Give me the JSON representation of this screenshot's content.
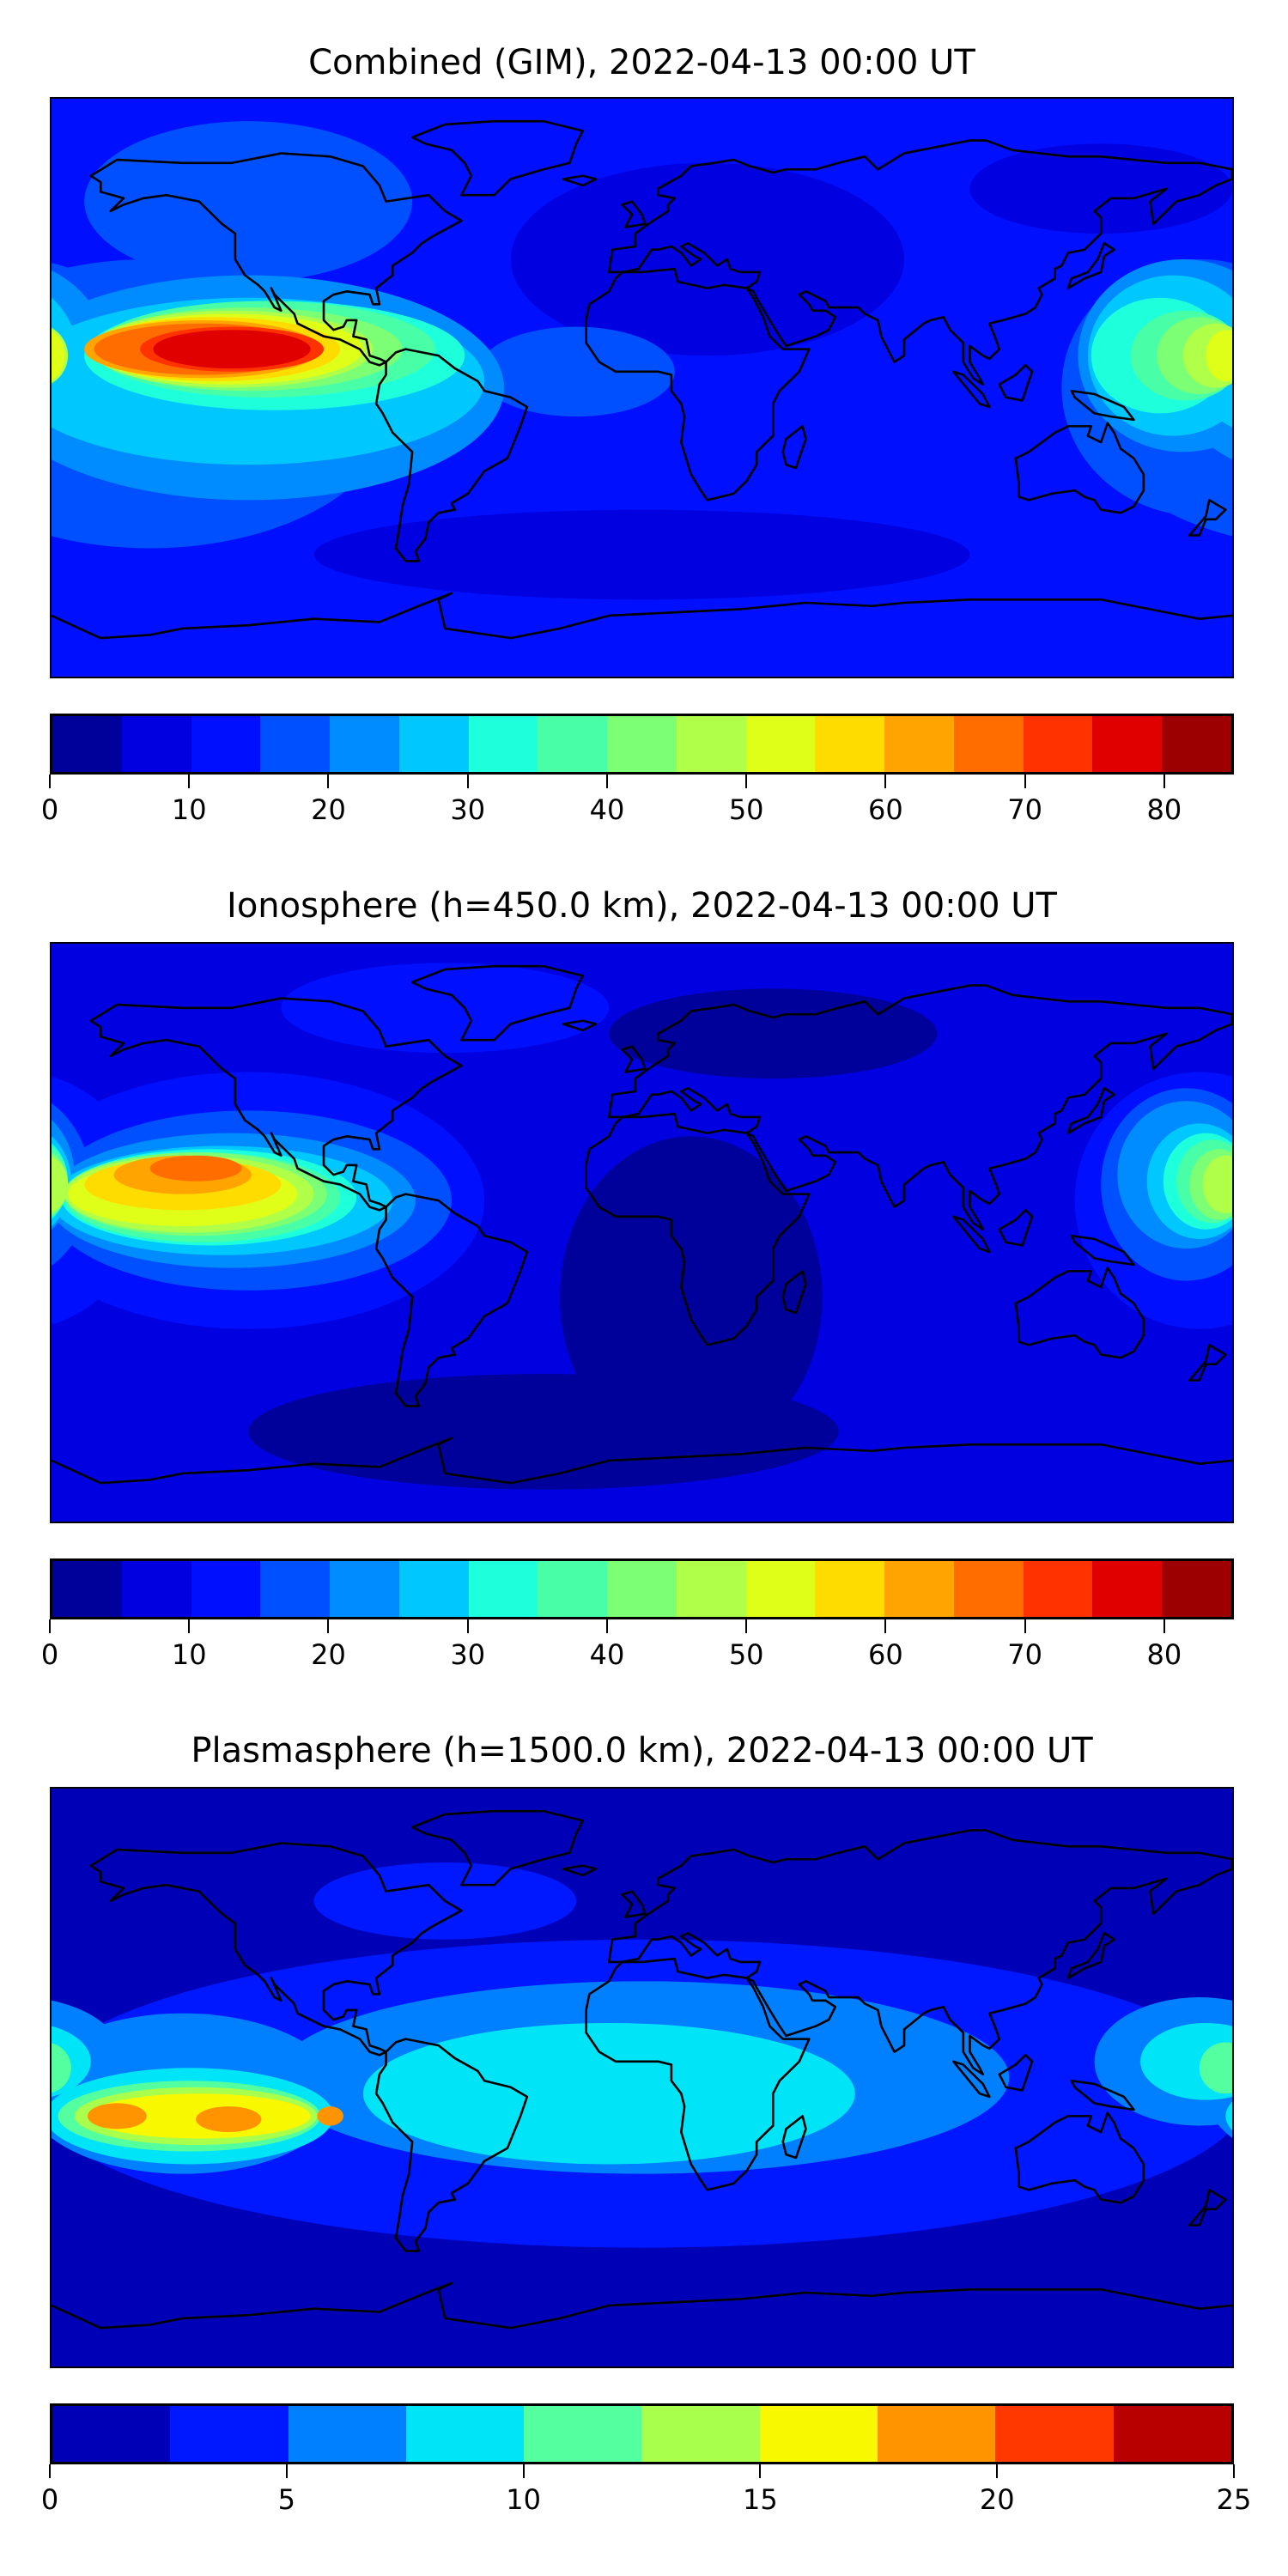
{
  "chart_data": [
    {
      "type": "heatmap",
      "title": "Combined (GIM), 2022-04-13 00:00 UT",
      "projection": "plate-carree, lon -180..180, lat -90..90",
      "levels": [
        0,
        5,
        10,
        15,
        20,
        25,
        30,
        35,
        40,
        45,
        50,
        55,
        60,
        65,
        70,
        75,
        80,
        85
      ],
      "colors": [
        "#00009a",
        "#0000e0",
        "#0010ff",
        "#0050ff",
        "#008cff",
        "#00c8ff",
        "#1effdc",
        "#48ffa8",
        "#7cff74",
        "#b0ff48",
        "#e0ff18",
        "#ffdc00",
        "#ffa400",
        "#ff6c00",
        "#ff3200",
        "#e00000",
        "#9c0000"
      ],
      "colorbar_ticks": [
        "0",
        "10",
        "20",
        "30",
        "40",
        "50",
        "60",
        "70",
        "80"
      ],
      "colorbar_range": [
        0,
        85
      ],
      "base_level": 2,
      "contour_regions": [
        {
          "level": 1,
          "lon": 20,
          "lat": 40,
          "rlon": 60,
          "rlat": 30
        },
        {
          "level": 1,
          "lon": 0,
          "lat": -52,
          "rlon": 100,
          "rlat": 14
        },
        {
          "level": 1,
          "lon": 140,
          "lat": 62,
          "rlon": 40,
          "rlat": 14
        },
        {
          "level": 3,
          "lon": -120,
          "lat": 58,
          "rlon": 50,
          "rlat": 25
        },
        {
          "level": 3,
          "lon": -150,
          "lat": -5,
          "rlon": 75,
          "rlat": 45
        },
        {
          "level": 3,
          "lon": 170,
          "lat": 0,
          "rlon": 42,
          "rlat": 40
        },
        {
          "level": 3,
          "lon": -20,
          "lat": 5,
          "rlon": 30,
          "rlat": 14
        },
        {
          "level": 4,
          "lon": -120,
          "lat": 0,
          "rlon": 78,
          "rlat": 35
        },
        {
          "level": 4,
          "lon": 165,
          "lat": 10,
          "rlon": 32,
          "rlat": 30
        },
        {
          "level": 5,
          "lon": -120,
          "lat": 2,
          "rlon": 72,
          "rlat": 26
        },
        {
          "level": 5,
          "lon": 162,
          "lat": 10,
          "rlon": 26,
          "rlat": 25
        },
        {
          "level": 6,
          "lon": -112,
          "lat": 10,
          "rlon": 58,
          "rlat": 17
        },
        {
          "level": 6,
          "lon": 158,
          "lat": 10,
          "rlon": 21,
          "rlat": 18
        },
        {
          "level": 7,
          "lon": -115,
          "lat": 12,
          "rlon": 52,
          "rlat": 15
        },
        {
          "level": 7,
          "lon": 166,
          "lat": 10,
          "rlon": 17,
          "rlat": 14
        },
        {
          "level": 8,
          "lon": -120,
          "lat": 12,
          "rlon": 47,
          "rlat": 13
        },
        {
          "level": 8,
          "lon": 170,
          "lat": 10,
          "rlon": 13,
          "rlat": 12
        },
        {
          "level": 9,
          "lon": -125,
          "lat": 12,
          "rlon": 43,
          "rlat": 12
        },
        {
          "level": 9,
          "lon": 175,
          "lat": 10,
          "rlon": 10,
          "rlat": 10
        },
        {
          "level": 10,
          "lon": -126,
          "lat": 12,
          "rlon": 41,
          "rlat": 11
        },
        {
          "level": 10,
          "lon": 178,
          "lat": 10,
          "rlon": 6,
          "rlat": 8
        },
        {
          "level": 11,
          "lon": -130,
          "lat": 12,
          "rlon": 38,
          "rlat": 10
        },
        {
          "level": 12,
          "lon": -134,
          "lat": 12,
          "rlon": 36,
          "rlat": 9
        },
        {
          "level": 13,
          "lon": -134,
          "lat": 12,
          "rlon": 33,
          "rlat": 8
        },
        {
          "level": 14,
          "lon": -125,
          "lat": 12,
          "rlon": 28,
          "rlat": 7
        },
        {
          "level": 15,
          "lon": -125,
          "lat": 12,
          "rlon": 24,
          "rlat": 6
        }
      ]
    },
    {
      "type": "heatmap",
      "title": "Ionosphere  (h=450.0 km), 2022-04-13 00:00 UT",
      "projection": "plate-carree, lon -180..180, lat -90..90",
      "levels": [
        0,
        5,
        10,
        15,
        20,
        25,
        30,
        35,
        40,
        45,
        50,
        55,
        60,
        65,
        70,
        75,
        80,
        85
      ],
      "colors": [
        "#00009a",
        "#0000e0",
        "#0010ff",
        "#0050ff",
        "#008cff",
        "#00c8ff",
        "#1effdc",
        "#48ffa8",
        "#7cff74",
        "#b0ff48",
        "#e0ff18",
        "#ffdc00",
        "#ffa400",
        "#ff6c00",
        "#ff3200",
        "#e00000",
        "#9c0000"
      ],
      "colorbar_ticks": [
        "0",
        "10",
        "20",
        "30",
        "40",
        "50",
        "60",
        "70",
        "80"
      ],
      "colorbar_range": [
        0,
        85
      ],
      "base_level": 1,
      "contour_regions": [
        {
          "level": 0,
          "lon": 15,
          "lat": -20,
          "rlon": 40,
          "rlat": 50
        },
        {
          "level": 0,
          "lon": 40,
          "lat": 62,
          "rlon": 50,
          "rlat": 14
        },
        {
          "level": 0,
          "lon": -30,
          "lat": -62,
          "rlon": 90,
          "rlat": 18
        },
        {
          "level": 2,
          "lon": -120,
          "lat": 10,
          "rlon": 72,
          "rlat": 40
        },
        {
          "level": 2,
          "lon": 170,
          "lat": 10,
          "rlon": 38,
          "rlat": 40
        },
        {
          "level": 2,
          "lon": -60,
          "lat": 70,
          "rlon": 50,
          "rlat": 14
        },
        {
          "level": 3,
          "lon": -120,
          "lat": 10,
          "rlon": 62,
          "rlat": 28
        },
        {
          "level": 3,
          "lon": 166,
          "lat": 15,
          "rlon": 26,
          "rlat": 30
        },
        {
          "level": 4,
          "lon": -125,
          "lat": 10,
          "rlon": 56,
          "rlat": 21
        },
        {
          "level": 4,
          "lon": 166,
          "lat": 18,
          "rlon": 21,
          "rlat": 23
        },
        {
          "level": 5,
          "lon": -128,
          "lat": 10,
          "rlon": 52,
          "rlat": 17
        },
        {
          "level": 5,
          "lon": 170,
          "lat": 16,
          "rlon": 16,
          "rlat": 18
        },
        {
          "level": 6,
          "lon": -132,
          "lat": 11,
          "rlon": 45,
          "rlat": 15
        },
        {
          "level": 6,
          "lon": 172,
          "lat": 16,
          "rlon": 13,
          "rlat": 15
        },
        {
          "level": 7,
          "lon": -134,
          "lat": 11,
          "rlon": 42,
          "rlat": 14
        },
        {
          "level": 7,
          "lon": 174,
          "lat": 16,
          "rlon": 11,
          "rlat": 13
        },
        {
          "level": 8,
          "lon": -136,
          "lat": 12,
          "rlon": 40,
          "rlat": 13
        },
        {
          "level": 8,
          "lon": 176,
          "lat": 15,
          "rlon": 9,
          "rlat": 11
        },
        {
          "level": 9,
          "lon": -138,
          "lat": 12,
          "rlon": 38,
          "rlat": 12
        },
        {
          "level": 9,
          "lon": 178,
          "lat": 15,
          "rlon": 7,
          "rlat": 9
        },
        {
          "level": 10,
          "lon": -140,
          "lat": 12,
          "rlon": 35,
          "rlat": 10
        },
        {
          "level": 11,
          "lon": -140,
          "lat": 15,
          "rlon": 30,
          "rlat": 8
        },
        {
          "level": 12,
          "lon": -140,
          "lat": 18,
          "rlon": 21,
          "rlat": 6
        },
        {
          "level": 13,
          "lon": -136,
          "lat": 20,
          "rlon": 14,
          "rlat": 4
        }
      ]
    },
    {
      "type": "heatmap",
      "title": "Plasmasphere (h=1500.0 km), 2022-04-13 00:00 UT",
      "projection": "plate-carree, lon -180..180, lat -90..90",
      "levels": [
        0,
        2.5,
        5,
        7.5,
        10,
        12.5,
        15,
        17.5,
        20,
        22.5,
        25
      ],
      "colors": [
        "#0000b6",
        "#0018ff",
        "#0080ff",
        "#00e4f8",
        "#54ffa0",
        "#a8ff4c",
        "#f8f800",
        "#ff9400",
        "#ff3800",
        "#b80000"
      ],
      "colorbar_ticks": [
        "0",
        "5",
        "10",
        "15",
        "20",
        "25"
      ],
      "colorbar_range": [
        0,
        25
      ],
      "base_level": 0,
      "contour_regions": [
        {
          "level": 1,
          "lon": 0,
          "lat": -5,
          "rlon": 185,
          "rlat": 48
        },
        {
          "level": 1,
          "lon": -60,
          "lat": 55,
          "rlon": 40,
          "rlat": 12
        },
        {
          "level": 2,
          "lon": 0,
          "lat": 0,
          "rlon": 112,
          "rlat": 30
        },
        {
          "level": 2,
          "lon": -140,
          "lat": -5,
          "rlon": 48,
          "rlat": 25
        },
        {
          "level": 2,
          "lon": 170,
          "lat": 5,
          "rlon": 32,
          "rlat": 20
        },
        {
          "level": 3,
          "lon": -10,
          "lat": -5,
          "rlon": 75,
          "rlat": 22
        },
        {
          "level": 3,
          "lon": -138,
          "lat": -12,
          "rlon": 44,
          "rlat": 15
        },
        {
          "level": 3,
          "lon": 172,
          "lat": 5,
          "rlon": 20,
          "rlat": 12
        },
        {
          "level": 4,
          "lon": -138,
          "lat": -12,
          "rlon": 40,
          "rlat": 11
        },
        {
          "level": 4,
          "lon": 178,
          "lat": 3,
          "rlon": 8,
          "rlat": 8
        },
        {
          "level": 5,
          "lon": -136,
          "lat": -12,
          "rlon": 37,
          "rlat": 9
        },
        {
          "level": 6,
          "lon": -135,
          "lat": -12,
          "rlon": 34,
          "rlat": 7
        },
        {
          "level": 7,
          "lon": -160,
          "lat": -12,
          "rlon": 9,
          "rlat": 4
        },
        {
          "level": 7,
          "lon": -126,
          "lat": -13,
          "rlon": 10,
          "rlat": 4
        },
        {
          "level": 7,
          "lon": -95,
          "lat": -12,
          "rlon": 4,
          "rlat": 3
        }
      ]
    }
  ]
}
